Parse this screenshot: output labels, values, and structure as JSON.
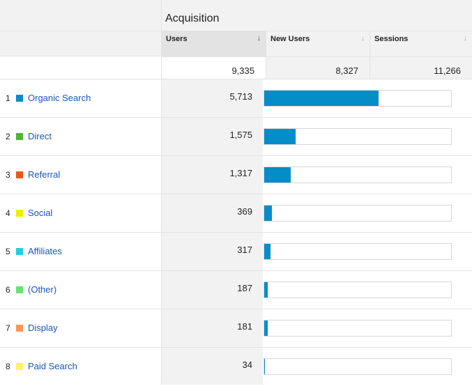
{
  "group_title": "Acquisition",
  "columns": [
    {
      "label": "Users",
      "sort_icon": "arrow-down-icon",
      "total": "9,335",
      "selected": true
    },
    {
      "label": "New Users",
      "sort_icon": "arrow-down-icon",
      "total": "8,327",
      "selected": false
    },
    {
      "label": "Sessions",
      "sort_icon": "arrow-down-icon",
      "total": "11,266",
      "selected": false
    }
  ],
  "bar_color": "#058dc7",
  "rows": [
    {
      "rank": "1",
      "name": "Organic Search",
      "color": "#058dc7",
      "users": "5,713",
      "share": 0.612
    },
    {
      "rank": "2",
      "name": "Direct",
      "color": "#50b432",
      "users": "1,575",
      "share": 0.169
    },
    {
      "rank": "3",
      "name": "Referral",
      "color": "#ed561b",
      "users": "1,317",
      "share": 0.141
    },
    {
      "rank": "4",
      "name": "Social",
      "color": "#edef00",
      "users": "369",
      "share": 0.04
    },
    {
      "rank": "5",
      "name": "Affiliates",
      "color": "#24cbe5",
      "users": "317",
      "share": 0.034
    },
    {
      "rank": "6",
      "name": "(Other)",
      "color": "#64e572",
      "users": "187",
      "share": 0.02
    },
    {
      "rank": "7",
      "name": "Display",
      "color": "#ff9655",
      "users": "181",
      "share": 0.019
    },
    {
      "rank": "8",
      "name": "Paid Search",
      "color": "#fff263",
      "users": "34",
      "share": 0.004
    }
  ]
}
